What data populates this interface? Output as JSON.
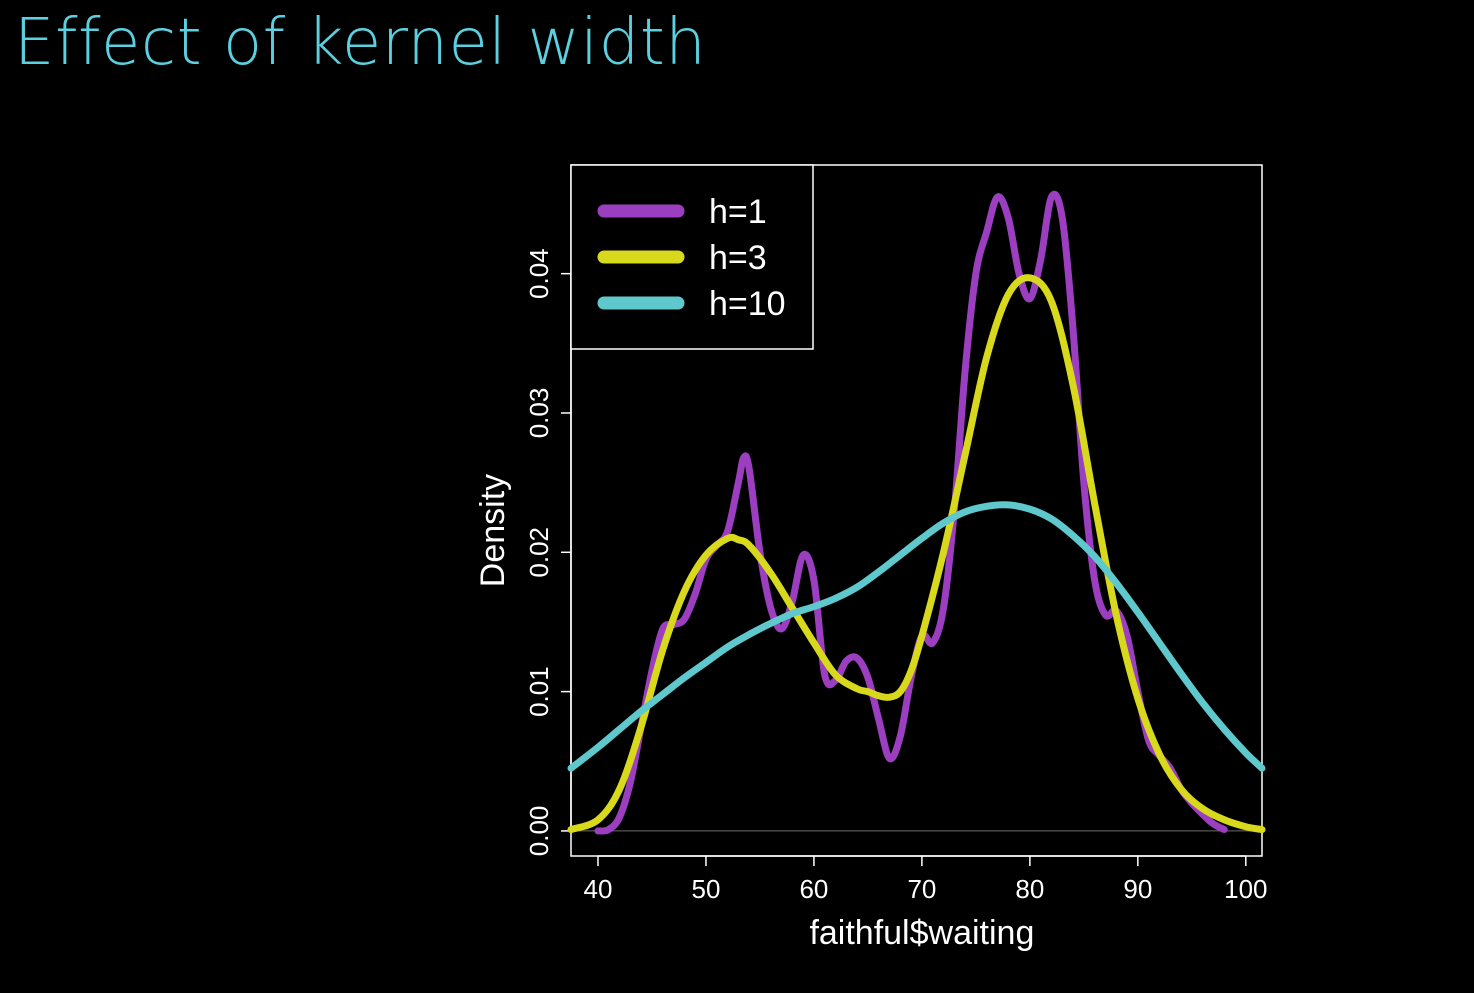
{
  "slide": {
    "title": "Effect of kernel width"
  },
  "colors": {
    "background": "#000000",
    "title": "#5ad0e0",
    "axis": "#ffffff"
  },
  "chart_data": {
    "type": "line",
    "title": "",
    "xlabel": "faithful$waiting",
    "ylabel": "Density",
    "xlim": [
      37.5,
      101.5
    ],
    "ylim": [
      -0.0018,
      0.0478
    ],
    "x_ticks": [
      40,
      50,
      60,
      70,
      80,
      90,
      100
    ],
    "y_ticks": [
      0.0,
      0.01,
      0.02,
      0.03,
      0.04
    ],
    "y_tick_labels": [
      "0.00",
      "0.01",
      "0.02",
      "0.03",
      "0.04"
    ],
    "grid": false,
    "baseline_at_zero": true,
    "legend": {
      "position": "top-left"
    },
    "series": [
      {
        "name": "h=1",
        "color": "#9b3fc0",
        "x": [
          40,
          41,
          42,
          43,
          44,
          45,
          46,
          47,
          48,
          49,
          50,
          51,
          52,
          53,
          53.5,
          54,
          55,
          56,
          57,
          58,
          59,
          60,
          61,
          62,
          63,
          64,
          65,
          66,
          67,
          68,
          69,
          70,
          71,
          72,
          73,
          74,
          75,
          76,
          77,
          78,
          79,
          80,
          81,
          82,
          83,
          84,
          85,
          86,
          87,
          88,
          89,
          90,
          91,
          92,
          93,
          94,
          95,
          96,
          97,
          98
        ],
        "y": [
          0.0,
          0.0001,
          0.001,
          0.0035,
          0.0075,
          0.0115,
          0.0145,
          0.0148,
          0.0152,
          0.017,
          0.0195,
          0.0205,
          0.0215,
          0.025,
          0.0268,
          0.026,
          0.02,
          0.016,
          0.0145,
          0.0165,
          0.0198,
          0.018,
          0.0112,
          0.0108,
          0.0122,
          0.0124,
          0.011,
          0.008,
          0.0052,
          0.0068,
          0.011,
          0.014,
          0.0135,
          0.016,
          0.023,
          0.033,
          0.04,
          0.043,
          0.0455,
          0.044,
          0.04,
          0.0382,
          0.041,
          0.0455,
          0.044,
          0.036,
          0.025,
          0.018,
          0.0155,
          0.0158,
          0.014,
          0.01,
          0.0065,
          0.0054,
          0.0045,
          0.003,
          0.002,
          0.0012,
          0.0005,
          0.0001
        ]
      },
      {
        "name": "h=3",
        "color": "#d8d81c",
        "x": [
          37.5,
          40,
          42,
          44,
          46,
          48,
          50,
          52,
          53,
          54,
          56,
          58,
          60,
          62,
          64,
          65,
          66,
          67,
          68,
          69,
          70,
          72,
          74,
          76,
          78,
          80,
          82,
          84,
          86,
          88,
          90,
          92,
          94,
          96,
          98,
          100,
          101.5
        ],
        "y": [
          0.0001,
          0.0008,
          0.003,
          0.0075,
          0.013,
          0.0172,
          0.0198,
          0.021,
          0.0209,
          0.0205,
          0.0185,
          0.016,
          0.0135,
          0.0112,
          0.0102,
          0.01,
          0.0097,
          0.0096,
          0.01,
          0.0115,
          0.014,
          0.02,
          0.027,
          0.034,
          0.0385,
          0.0397,
          0.038,
          0.032,
          0.0235,
          0.0155,
          0.0095,
          0.0055,
          0.003,
          0.0016,
          0.0008,
          0.0003,
          0.0001
        ]
      },
      {
        "name": "h=10",
        "color": "#5ec8cc",
        "x": [
          37.5,
          40,
          42,
          44,
          46,
          48,
          50,
          52,
          54,
          56,
          58,
          60,
          62,
          64,
          66,
          68,
          70,
          72,
          74,
          76,
          78,
          80,
          82,
          84,
          86,
          88,
          90,
          92,
          94,
          96,
          98,
          100,
          101.5
        ],
        "y": [
          0.0045,
          0.006,
          0.0073,
          0.0086,
          0.0098,
          0.011,
          0.0121,
          0.0132,
          0.0141,
          0.0149,
          0.0156,
          0.0161,
          0.0167,
          0.0175,
          0.0186,
          0.0198,
          0.021,
          0.0221,
          0.0229,
          0.0233,
          0.0234,
          0.0231,
          0.0224,
          0.0212,
          0.0197,
          0.0178,
          0.0157,
          0.0135,
          0.0113,
          0.0092,
          0.0073,
          0.0056,
          0.0045
        ]
      }
    ]
  }
}
